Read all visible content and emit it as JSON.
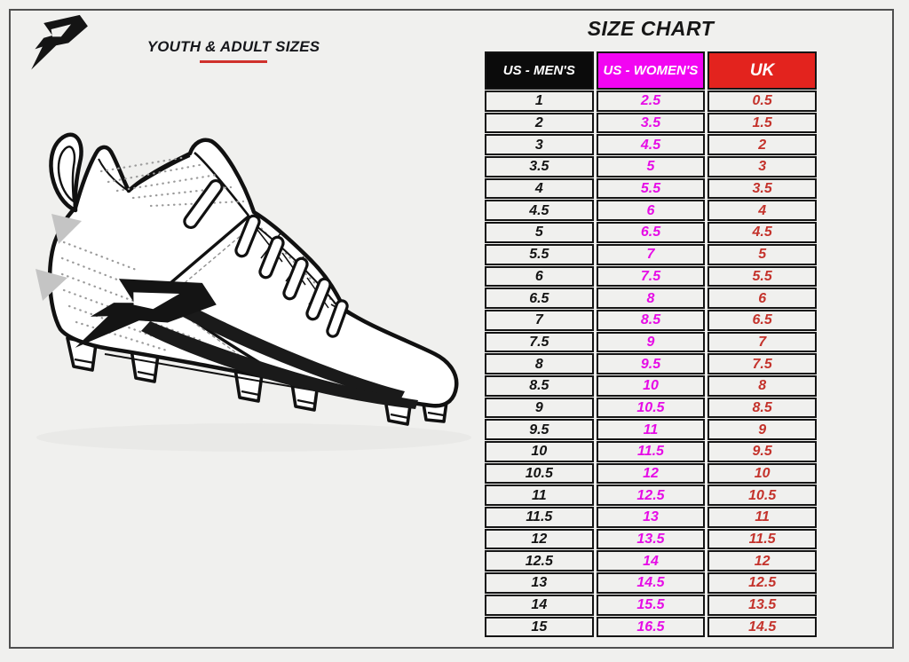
{
  "theme": {
    "page_bg": "#f0f0ee",
    "frame_border": "#4f4f4f",
    "accent_red_underline": "#cf312c",
    "title_ink": "#161616",
    "columns": [
      {
        "bg": "#0b0b0b",
        "text_color": "#ffffff",
        "value_color": "#141414"
      },
      {
        "bg": "#f205f2",
        "text_color": "#ffffff",
        "value_color": "#e60ce6"
      },
      {
        "bg": "#e3231e",
        "text_color": "#ffffff",
        "value_color": "#c4332c"
      }
    ]
  },
  "branding": {
    "logo": "phenom-p-logo-mark"
  },
  "left_panel": {
    "heading": "YOUTH & ADULT SIZES",
    "illustration": "football-cleat-line-drawing"
  },
  "chart_data": {
    "type": "table",
    "title": "SIZE CHART",
    "columns": [
      "US - MEN'S",
      "US - WOMEN'S",
      "UK"
    ],
    "rows": [
      [
        "1",
        "2.5",
        "0.5"
      ],
      [
        "2",
        "3.5",
        "1.5"
      ],
      [
        "3",
        "4.5",
        "2"
      ],
      [
        "3.5",
        "5",
        "3"
      ],
      [
        "4",
        "5.5",
        "3.5"
      ],
      [
        "4.5",
        "6",
        "4"
      ],
      [
        "5",
        "6.5",
        "4.5"
      ],
      [
        "5.5",
        "7",
        "5"
      ],
      [
        "6",
        "7.5",
        "5.5"
      ],
      [
        "6.5",
        "8",
        "6"
      ],
      [
        "7",
        "8.5",
        "6.5"
      ],
      [
        "7.5",
        "9",
        "7"
      ],
      [
        "8",
        "9.5",
        "7.5"
      ],
      [
        "8.5",
        "10",
        "8"
      ],
      [
        "9",
        "10.5",
        "8.5"
      ],
      [
        "9.5",
        "11",
        "9"
      ],
      [
        "10",
        "11.5",
        "9.5"
      ],
      [
        "10.5",
        "12",
        "10"
      ],
      [
        "11",
        "12.5",
        "10.5"
      ],
      [
        "11.5",
        "13",
        "11"
      ],
      [
        "12",
        "13.5",
        "11.5"
      ],
      [
        "12.5",
        "14",
        "12"
      ],
      [
        "13",
        "14.5",
        "12.5"
      ],
      [
        "14",
        "15.5",
        "13.5"
      ],
      [
        "15",
        "16.5",
        "14.5"
      ]
    ]
  }
}
